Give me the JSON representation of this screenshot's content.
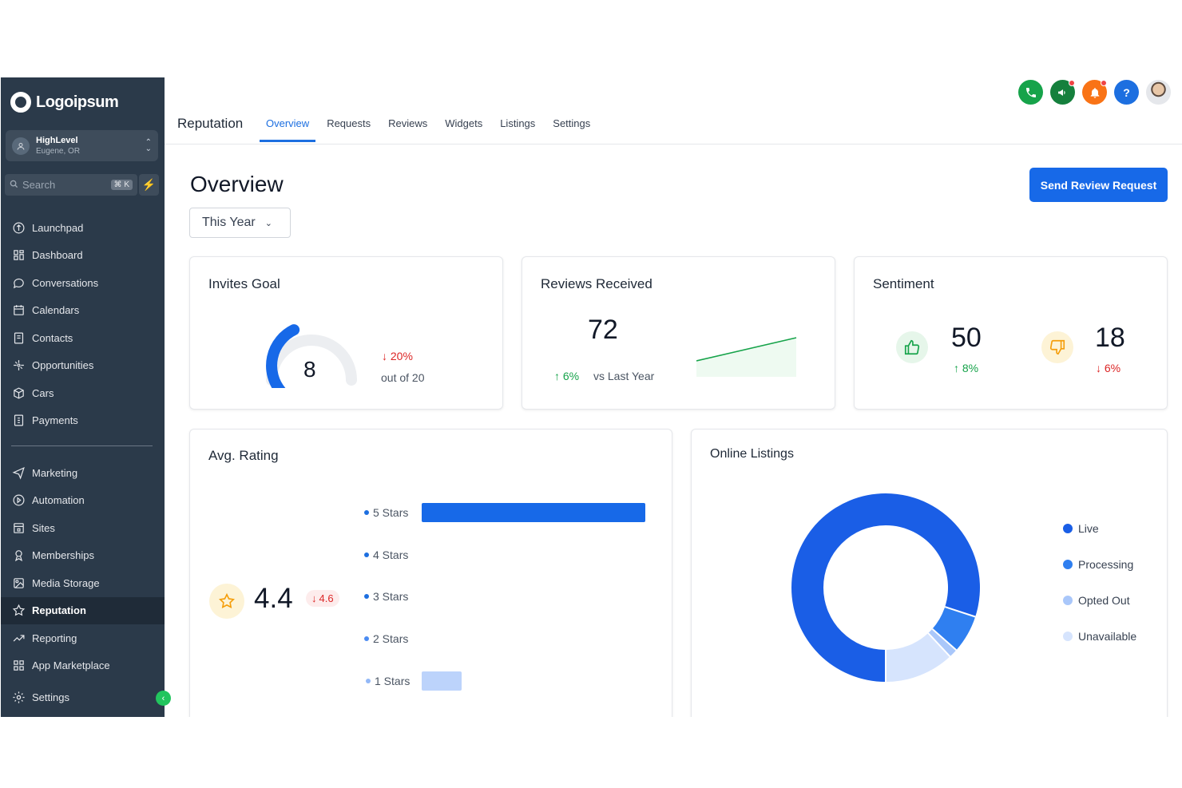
{
  "brand": {
    "name": "Logoipsum"
  },
  "location": {
    "name": "HighLevel",
    "city": "Eugene, OR"
  },
  "search": {
    "placeholder": "Search",
    "shortcut": "⌘ K"
  },
  "nav": {
    "primary": [
      "Launchpad",
      "Dashboard",
      "Conversations",
      "Calendars",
      "Contacts",
      "Opportunities",
      "Cars",
      "Payments"
    ],
    "secondary": [
      "Marketing",
      "Automation",
      "Sites",
      "Memberships",
      "Media Storage",
      "Reputation",
      "Reporting",
      "App Marketplace"
    ],
    "settings": "Settings",
    "active": "Reputation"
  },
  "header": {
    "title": "Reputation",
    "tabs": [
      "Overview",
      "Requests",
      "Reviews",
      "Widgets",
      "Listings",
      "Settings"
    ],
    "active_tab": "Overview"
  },
  "page": {
    "heading": "Overview",
    "period": "This Year",
    "send_button": "Send Review Request"
  },
  "invites_goal": {
    "title": "Invites Goal",
    "value": "8",
    "change": "20%",
    "subtext": "out of 20",
    "progress": 0.4
  },
  "reviews_received": {
    "title": "Reviews Received",
    "value": "72",
    "change": "6%",
    "subtext": "vs Last Year"
  },
  "sentiment": {
    "title": "Sentiment",
    "positive": {
      "value": "50",
      "change": "8%"
    },
    "negative": {
      "value": "18",
      "change": "6%"
    }
  },
  "avg_rating": {
    "title": "Avg. Rating",
    "value": "4.4",
    "previous": "4.6",
    "bars": [
      {
        "label": "5 Stars",
        "fraction": 1.0
      },
      {
        "label": "4 Stars",
        "fraction": 0
      },
      {
        "label": "3 Stars",
        "fraction": 0
      },
      {
        "label": "2 Stars",
        "fraction": 0
      },
      {
        "label": "1 Stars",
        "fraction": 0.18
      }
    ]
  },
  "online_listings": {
    "title": "Online Listings",
    "legend": [
      {
        "label": "Live",
        "color": "#1a5ee6"
      },
      {
        "label": "Processing",
        "color": "#2f7ff0"
      },
      {
        "label": "Opted Out",
        "color": "#a9c7fa"
      },
      {
        "label": "Unavailable",
        "color": "#d6e4fd"
      }
    ]
  },
  "colors": {
    "accent": "#1769e8",
    "sidebar": "#2b3a4a",
    "up": "#16a34a",
    "down": "#dc2626"
  }
}
